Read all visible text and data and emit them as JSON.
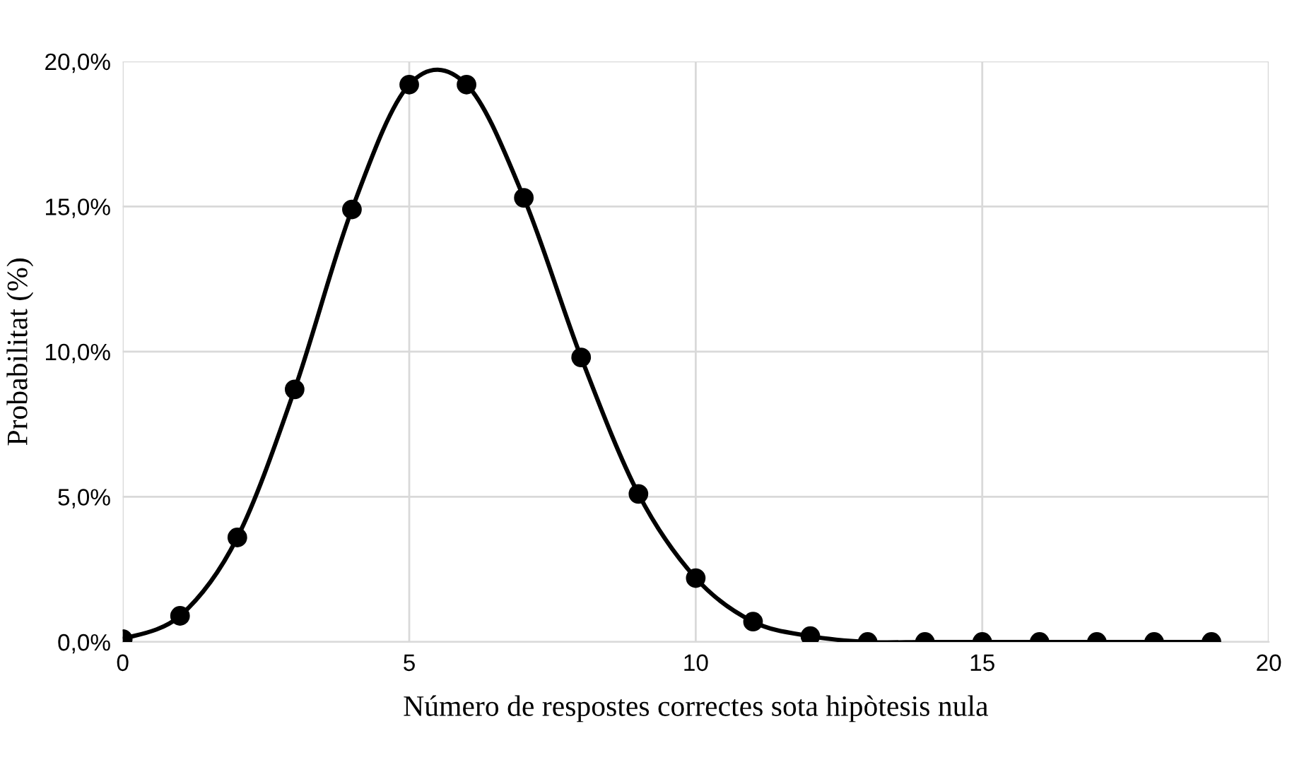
{
  "chart_data": {
    "type": "line",
    "xlabel": "Número de respostes correctes sota hipòtesis nula",
    "ylabel": "Probabilitat (%)",
    "x": [
      0,
      1,
      2,
      3,
      4,
      5,
      6,
      7,
      8,
      9,
      10,
      11,
      12,
      13,
      14,
      15,
      16,
      17,
      18,
      19
    ],
    "series": [
      {
        "color": "#000000",
        "values": [
          0.1,
          0.9,
          3.6,
          8.7,
          14.9,
          19.2,
          19.2,
          15.3,
          9.8,
          5.1,
          2.2,
          0.7,
          0.2,
          0.0,
          0.0,
          0.0,
          0.0,
          0.0,
          0.0,
          0.0
        ]
      }
    ],
    "xlim": [
      0,
      20
    ],
    "xticks": [
      0,
      5,
      10,
      15,
      20
    ],
    "ylim": [
      0,
      20
    ],
    "yticks": [
      {
        "value": 0,
        "label": "0,0%"
      },
      {
        "value": 5,
        "label": "5,0%"
      },
      {
        "value": 10,
        "label": "10,0%"
      },
      {
        "value": 15,
        "label": "15,0%"
      },
      {
        "value": 20,
        "label": "20,0%"
      }
    ],
    "grid": true,
    "marker": "circle",
    "line_style": "solid"
  }
}
